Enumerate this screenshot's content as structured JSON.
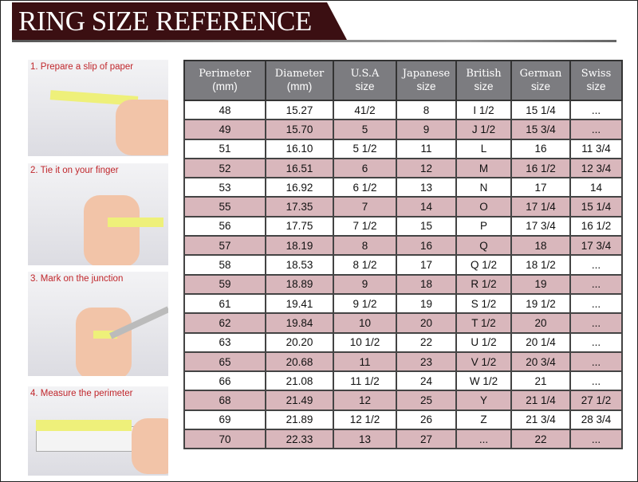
{
  "title": "RING SIZE REFERENCE",
  "steps": [
    "1. Prepare a slip of paper",
    "2. Tie it on your finger",
    "3. Mark on the junction",
    "4. Measure the perimeter"
  ],
  "colors": {
    "banner": "#3b0f12",
    "header": "#7c7c80",
    "alt_row": "#d9b7bc",
    "step_text": "#c0262b"
  },
  "table": {
    "headers": [
      [
        "Perimeter",
        "(mm)"
      ],
      [
        "Diameter",
        "(mm)"
      ],
      [
        "U.S.A",
        "size"
      ],
      [
        "Japanese",
        "size"
      ],
      [
        "British",
        "size"
      ],
      [
        "German",
        "size"
      ],
      [
        "Swiss",
        "size"
      ]
    ],
    "rows": [
      [
        "48",
        "15.27",
        "41/2",
        "8",
        "I 1/2",
        "15 1/4",
        "..."
      ],
      [
        "49",
        "15.70",
        "5",
        "9",
        "J 1/2",
        "15 3/4",
        "..."
      ],
      [
        "51",
        "16.10",
        "5 1/2",
        "11",
        "L",
        "16",
        "11 3/4"
      ],
      [
        "52",
        "16.51",
        "6",
        "12",
        "M",
        "16 1/2",
        "12 3/4"
      ],
      [
        "53",
        "16.92",
        "6 1/2",
        "13",
        "N",
        "17",
        "14"
      ],
      [
        "55",
        "17.35",
        "7",
        "14",
        "O",
        "17 1/4",
        "15 1/4"
      ],
      [
        "56",
        "17.75",
        "7 1/2",
        "15",
        "P",
        "17 3/4",
        "16 1/2"
      ],
      [
        "57",
        "18.19",
        "8",
        "16",
        "Q",
        "18",
        "17 3/4"
      ],
      [
        "58",
        "18.53",
        "8 1/2",
        "17",
        "Q  1/2",
        "18 1/2",
        "..."
      ],
      [
        "59",
        "18.89",
        "9",
        "18",
        "R 1/2",
        "19",
        "..."
      ],
      [
        "61",
        "19.41",
        "9 1/2",
        "19",
        "S 1/2",
        "19 1/2",
        "..."
      ],
      [
        "62",
        "19.84",
        "10",
        "20",
        "T 1/2",
        "20",
        "..."
      ],
      [
        "63",
        "20.20",
        "10 1/2",
        "22",
        "U 1/2",
        "20 1/4",
        "..."
      ],
      [
        "65",
        "20.68",
        "11",
        "23",
        "V 1/2",
        "20 3/4",
        "..."
      ],
      [
        "66",
        "21.08",
        "11 1/2",
        "24",
        "W 1/2",
        "21",
        "..."
      ],
      [
        "68",
        "21.49",
        "12",
        "25",
        "Y",
        "21 1/4",
        "27 1/2"
      ],
      [
        "69",
        "21.89",
        "12 1/2",
        "26",
        "Z",
        "21 3/4",
        "28 3/4"
      ],
      [
        "70",
        "22.33",
        "13",
        "27",
        "...",
        "22",
        "..."
      ]
    ]
  }
}
